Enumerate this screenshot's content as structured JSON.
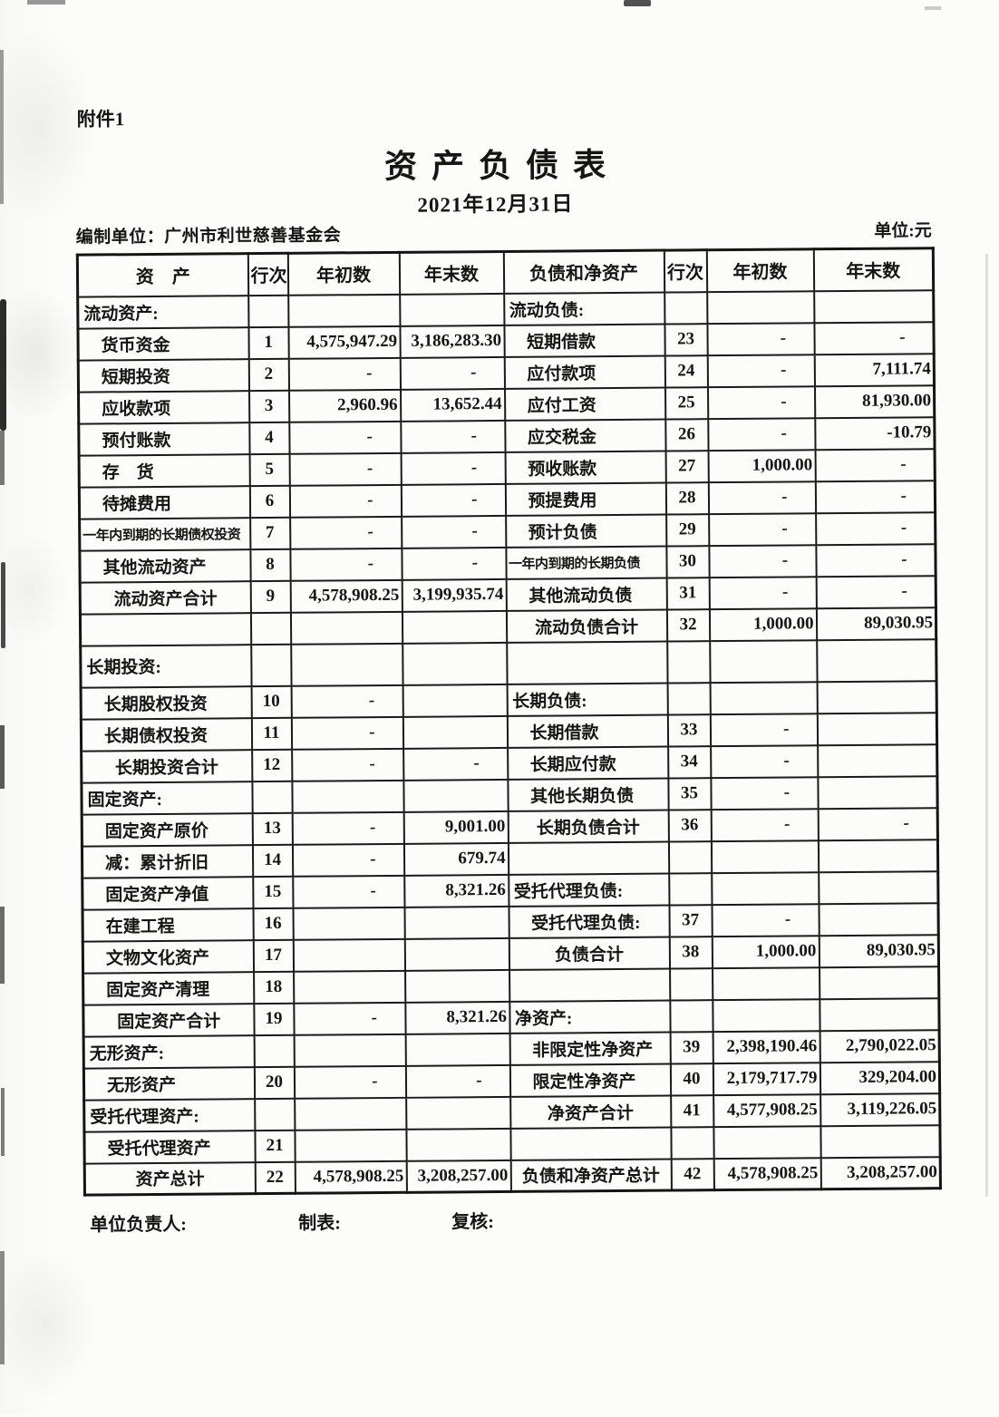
{
  "document": {
    "attachment": "附件1",
    "title": "资产负债表",
    "date": "2021年12月31日",
    "prepared_by": "编制单位：广州市利世慈善基金会",
    "unit": "单位:元",
    "footer": {
      "responsible": "单位负责人:",
      "tabulation": "制表:",
      "review": "复核:"
    }
  },
  "table": {
    "headers": [
      "资　产",
      "行次",
      "年初数",
      "年末数",
      "负债和净资产",
      "行次",
      "年初数",
      "年末数"
    ],
    "rows": [
      {
        "asset": {
          "label": "流动资产:",
          "style": "section",
          "line": "",
          "begin": "",
          "end": ""
        },
        "liability": {
          "label": "流动负债:",
          "style": "section",
          "line": "",
          "begin": "",
          "end": ""
        }
      },
      {
        "asset": {
          "label": "货币资金",
          "style": "item",
          "line": "1",
          "begin": "4,575,947.29",
          "end": "3,186,283.30"
        },
        "liability": {
          "label": "短期借款",
          "style": "item",
          "line": "23",
          "begin": "-",
          "end": "-"
        }
      },
      {
        "asset": {
          "label": "短期投资",
          "style": "item",
          "line": "2",
          "begin": "-",
          "end": "-"
        },
        "liability": {
          "label": "应付款项",
          "style": "item",
          "line": "24",
          "begin": "-",
          "end": "7,111.74"
        }
      },
      {
        "asset": {
          "label": "应收款项",
          "style": "item",
          "line": "3",
          "begin": "2,960.96",
          "end": "13,652.44"
        },
        "liability": {
          "label": "应付工资",
          "style": "item",
          "line": "25",
          "begin": "-",
          "end": "81,930.00"
        }
      },
      {
        "asset": {
          "label": "预付账款",
          "style": "item",
          "line": "4",
          "begin": "-",
          "end": "-"
        },
        "liability": {
          "label": "应交税金",
          "style": "item",
          "line": "26",
          "begin": "-",
          "end": "-10.79"
        }
      },
      {
        "asset": {
          "label": "存　货",
          "style": "item",
          "line": "5",
          "begin": "-",
          "end": "-"
        },
        "liability": {
          "label": "预收账款",
          "style": "item",
          "line": "27",
          "begin": "1,000.00",
          "end": "-"
        }
      },
      {
        "asset": {
          "label": "待摊费用",
          "style": "item",
          "line": "6",
          "begin": "-",
          "end": "-"
        },
        "liability": {
          "label": "预提费用",
          "style": "item",
          "line": "28",
          "begin": "-",
          "end": "-"
        }
      },
      {
        "asset": {
          "label": "一年内到期的长期债权投资",
          "style": "item-sm",
          "line": "7",
          "begin": "-",
          "end": "-"
        },
        "liability": {
          "label": "预计负债",
          "style": "item",
          "line": "29",
          "begin": "-",
          "end": "-"
        }
      },
      {
        "asset": {
          "label": "其他流动资产",
          "style": "item",
          "line": "8",
          "begin": "-",
          "end": "-"
        },
        "liability": {
          "label": "一年内到期的长期负债",
          "style": "item-sm",
          "line": "30",
          "begin": "-",
          "end": "-"
        }
      },
      {
        "asset": {
          "label": "流动资产合计",
          "style": "total",
          "line": "9",
          "begin": "4,578,908.25",
          "end": "3,199,935.74"
        },
        "liability": {
          "label": "其他流动负债",
          "style": "item",
          "line": "31",
          "begin": "-",
          "end": "-"
        }
      },
      {
        "asset": {
          "label": "",
          "style": "blank",
          "line": "",
          "begin": "",
          "end": ""
        },
        "liability": {
          "label": "流动负债合计",
          "style": "total",
          "line": "32",
          "begin": "1,000.00",
          "end": "89,030.95"
        }
      },
      {
        "tall": true,
        "asset": {
          "label": "长期投资:",
          "style": "section",
          "line": "",
          "begin": "",
          "end": ""
        },
        "liability": {
          "label": "",
          "style": "blank",
          "line": "",
          "begin": "",
          "end": ""
        }
      },
      {
        "asset": {
          "label": "长期股权投资",
          "style": "item",
          "line": "10",
          "begin": "-",
          "end": ""
        },
        "liability": {
          "label": "长期负债:",
          "style": "section",
          "line": "",
          "begin": "",
          "end": ""
        }
      },
      {
        "asset": {
          "label": "长期债权投资",
          "style": "item",
          "line": "11",
          "begin": "-",
          "end": ""
        },
        "liability": {
          "label": "长期借款",
          "style": "item",
          "line": "33",
          "begin": "-",
          "end": ""
        }
      },
      {
        "asset": {
          "label": "长期投资合计",
          "style": "total",
          "line": "12",
          "begin": "-",
          "end": "-"
        },
        "liability": {
          "label": "长期应付款",
          "style": "item",
          "line": "34",
          "begin": "-",
          "end": ""
        }
      },
      {
        "asset": {
          "label": "固定资产:",
          "style": "section",
          "line": "",
          "begin": "",
          "end": ""
        },
        "liability": {
          "label": "其他长期负债",
          "style": "item",
          "line": "35",
          "begin": "-",
          "end": ""
        }
      },
      {
        "asset": {
          "label": "固定资产原价",
          "style": "item",
          "line": "13",
          "begin": "-",
          "end": "9,001.00"
        },
        "liability": {
          "label": "长期负债合计",
          "style": "total",
          "line": "36",
          "begin": "-",
          "end": "-"
        }
      },
      {
        "asset": {
          "label": "减：累计折旧",
          "style": "item",
          "line": "14",
          "begin": "-",
          "end": "679.74"
        },
        "liability": {
          "label": "",
          "style": "blank",
          "line": "",
          "begin": "",
          "end": ""
        }
      },
      {
        "asset": {
          "label": "固定资产净值",
          "style": "item",
          "line": "15",
          "begin": "-",
          "end": "8,321.26"
        },
        "liability": {
          "label": "受托代理负债:",
          "style": "section",
          "line": "",
          "begin": "",
          "end": ""
        }
      },
      {
        "asset": {
          "label": "在建工程",
          "style": "item",
          "line": "16",
          "begin": "",
          "end": ""
        },
        "liability": {
          "label": "受托代理负债:",
          "style": "item",
          "line": "37",
          "begin": "-",
          "end": ""
        }
      },
      {
        "asset": {
          "label": "文物文化资产",
          "style": "item",
          "line": "17",
          "begin": "",
          "end": ""
        },
        "liability": {
          "label": "负债合计",
          "style": "total",
          "line": "38",
          "begin": "1,000.00",
          "end": "89,030.95"
        }
      },
      {
        "asset": {
          "label": "固定资产清理",
          "style": "item",
          "line": "18",
          "begin": "",
          "end": ""
        },
        "liability": {
          "label": "",
          "style": "blank",
          "line": "",
          "begin": "",
          "end": ""
        }
      },
      {
        "asset": {
          "label": "固定资产合计",
          "style": "total",
          "line": "19",
          "begin": "-",
          "end": "8,321.26"
        },
        "liability": {
          "label": "净资产:",
          "style": "section",
          "line": "",
          "begin": "",
          "end": ""
        }
      },
      {
        "asset": {
          "label": "无形资产:",
          "style": "section",
          "line": "",
          "begin": "",
          "end": ""
        },
        "liability": {
          "label": "非限定性净资产",
          "style": "item",
          "line": "39",
          "begin": "2,398,190.46",
          "end": "2,790,022.05"
        }
      },
      {
        "asset": {
          "label": "无形资产",
          "style": "item",
          "line": "20",
          "begin": "-",
          "end": "-"
        },
        "liability": {
          "label": "限定性净资产",
          "style": "item",
          "line": "40",
          "begin": "2,179,717.79",
          "end": "329,204.00"
        }
      },
      {
        "asset": {
          "label": "受托代理资产:",
          "style": "section",
          "line": "",
          "begin": "",
          "end": ""
        },
        "liability": {
          "label": "净资产合计",
          "style": "total",
          "line": "41",
          "begin": "4,577,908.25",
          "end": "3,119,226.05"
        }
      },
      {
        "asset": {
          "label": "受托代理资产",
          "style": "item",
          "line": "21",
          "begin": "",
          "end": ""
        },
        "liability": {
          "label": "",
          "style": "blank",
          "line": "",
          "begin": "",
          "end": ""
        }
      },
      {
        "asset": {
          "label": "资产总计",
          "style": "total",
          "line": "22",
          "begin": "4,578,908.25",
          "end": "3,208,257.00"
        },
        "liability": {
          "label": "负债和净资产总计",
          "style": "total",
          "line": "42",
          "begin": "4,578,908.25",
          "end": "3,208,257.00"
        }
      }
    ]
  }
}
